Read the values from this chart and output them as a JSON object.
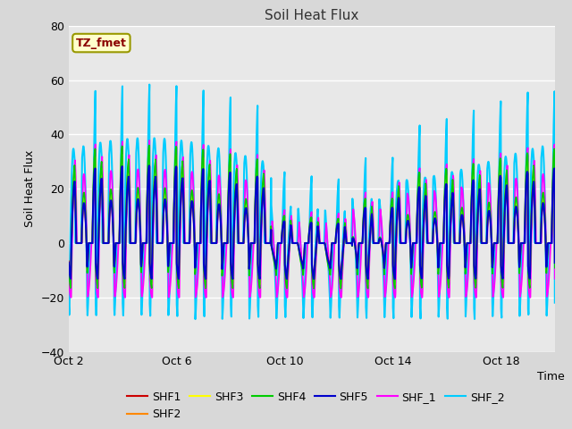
{
  "title": "Soil Heat Flux",
  "xlabel": "Time",
  "ylabel": "Soil Heat Flux",
  "ylim": [
    -40,
    80
  ],
  "yticks": [
    -40,
    -20,
    0,
    20,
    40,
    60,
    80
  ],
  "xtick_labels": [
    "Oct 2",
    "Oct 6",
    "Oct 10",
    "Oct 14",
    "Oct 18"
  ],
  "tick_positions": [
    0,
    4,
    8,
    12,
    16
  ],
  "legend_label": "TZ_fmet",
  "series_names": [
    "SHF1",
    "SHF2",
    "SHF3",
    "SHF4",
    "SHF5",
    "SHF_1",
    "SHF_2"
  ],
  "series_colors": [
    "#cc0000",
    "#ff8800",
    "#ffff00",
    "#00cc00",
    "#0000cc",
    "#ff00ff",
    "#00ccff"
  ],
  "series_linewidths": [
    1.2,
    1.2,
    1.2,
    1.2,
    1.5,
    1.3,
    1.5
  ],
  "fig_bg": "#d8d8d8",
  "axes_bg": "#e8e8e8",
  "n_days": 18,
  "pts_per_day": 96
}
